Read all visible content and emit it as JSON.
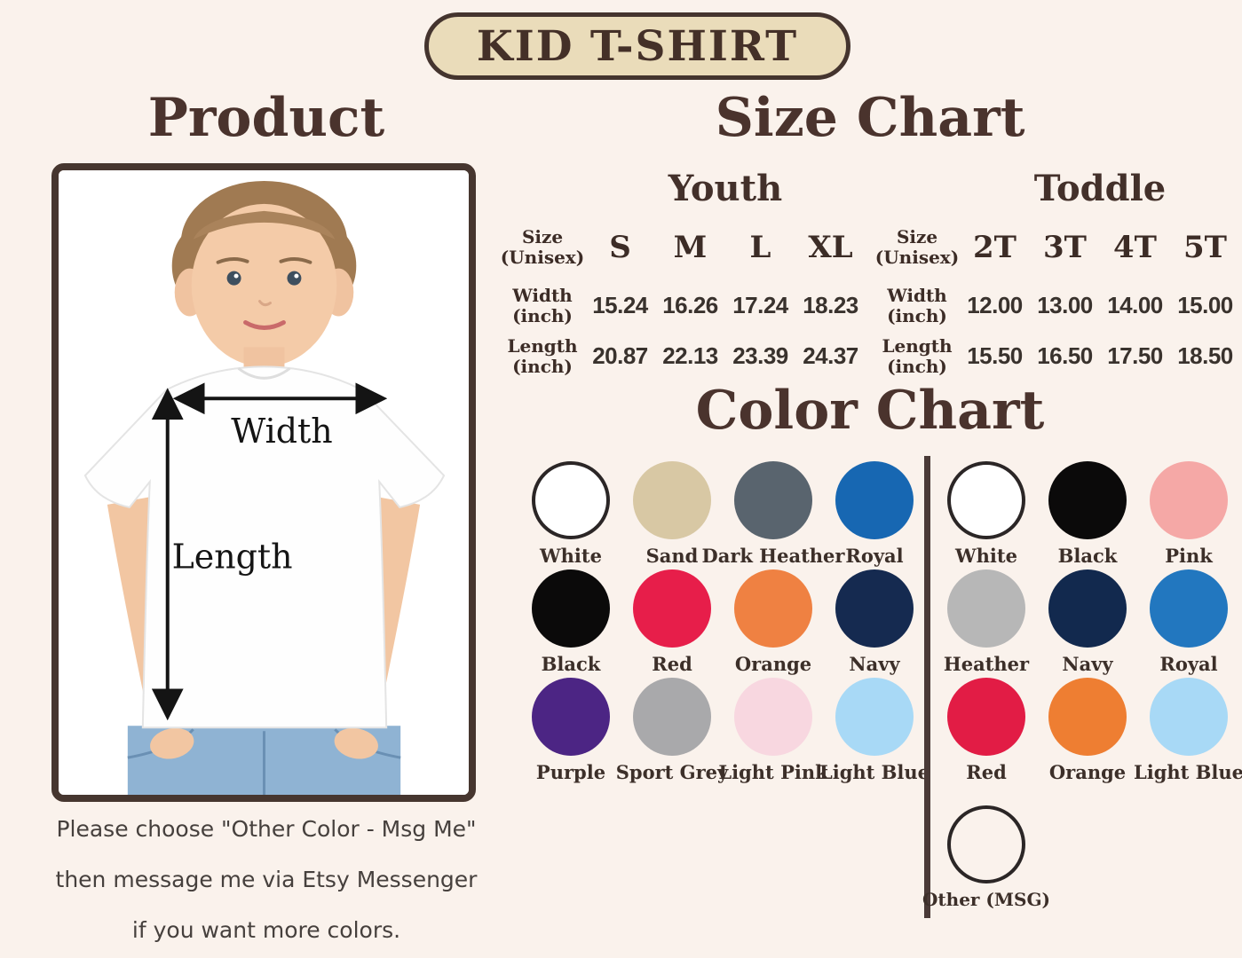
{
  "page": {
    "background": "#faf2ec",
    "accent_brown": "#4a332d",
    "badge_fill": "#eadcba"
  },
  "title_badge": {
    "label": "KID T-SHIRT"
  },
  "product": {
    "heading": "Product",
    "photo": {
      "width_label": "Width",
      "length_label": "Length"
    },
    "note_lines": [
      "Please choose \"Other Color - Msg Me\"",
      "then message me via Etsy Messenger",
      "if you want more colors."
    ]
  },
  "size_chart": {
    "heading": "Size Chart",
    "tables": [
      {
        "group": "Youth",
        "row_header": "Size (Unisex)",
        "sizes": [
          "S",
          "M",
          "L",
          "XL"
        ],
        "rows": [
          {
            "label": "Width (inch)",
            "values": [
              "15.24",
              "16.26",
              "17.24",
              "18.23"
            ]
          },
          {
            "label": "Length (inch)",
            "values": [
              "20.87",
              "22.13",
              "23.39",
              "24.37"
            ]
          }
        ]
      },
      {
        "group": "Toddle",
        "row_header": "Size (Unisex)",
        "sizes": [
          "2T",
          "3T",
          "4T",
          "5T"
        ],
        "rows": [
          {
            "label": "Width (inch)",
            "values": [
              "12.00",
              "13.00",
              "14.00",
              "15.00"
            ]
          },
          {
            "label": "Length (inch)",
            "values": [
              "15.50",
              "16.50",
              "17.50",
              "18.50"
            ]
          }
        ]
      }
    ]
  },
  "color_chart": {
    "heading": "Color Chart",
    "left_group": [
      {
        "name": "White",
        "hex": "#ffffff",
        "outlined": true
      },
      {
        "name": "Sand",
        "hex": "#d8c8a4",
        "outlined": false
      },
      {
        "name": "Dark Heather",
        "hex": "#59646e",
        "outlined": false
      },
      {
        "name": "Royal",
        "hex": "#1767b2",
        "outlined": false
      },
      {
        "name": "Black",
        "hex": "#0b0a0a",
        "outlined": false
      },
      {
        "name": "Red",
        "hex": "#e71e4a",
        "outlined": false
      },
      {
        "name": "Orange",
        "hex": "#ef8142",
        "outlined": false
      },
      {
        "name": "Navy",
        "hex": "#152a50",
        "outlined": false
      },
      {
        "name": "Purple",
        "hex": "#4c2584",
        "outlined": false
      },
      {
        "name": "Sport Grey",
        "hex": "#a9a9ab",
        "outlined": false
      },
      {
        "name": "Light Pink",
        "hex": "#f8d7e0",
        "outlined": false
      },
      {
        "name": "Light Blue",
        "hex": "#a8d9f6",
        "outlined": false
      }
    ],
    "right_group": [
      {
        "name": "White",
        "hex": "#ffffff",
        "outlined": true
      },
      {
        "name": "Black",
        "hex": "#0b0a0a",
        "outlined": false
      },
      {
        "name": "Pink",
        "hex": "#f5a8a6",
        "outlined": false
      },
      {
        "name": "Heather",
        "hex": "#b7b7b7",
        "outlined": false
      },
      {
        "name": "Navy",
        "hex": "#12294e",
        "outlined": false
      },
      {
        "name": "Royal",
        "hex": "#2277bf",
        "outlined": false
      },
      {
        "name": "Red",
        "hex": "#e21c45",
        "outlined": false
      },
      {
        "name": "Orange",
        "hex": "#ee7e32",
        "outlined": false
      },
      {
        "name": "Light Blue",
        "hex": "#a8d9f6",
        "outlined": false
      }
    ],
    "other": {
      "name": "Other (MSG)",
      "hex": "#ffffff",
      "outlined": true
    }
  }
}
